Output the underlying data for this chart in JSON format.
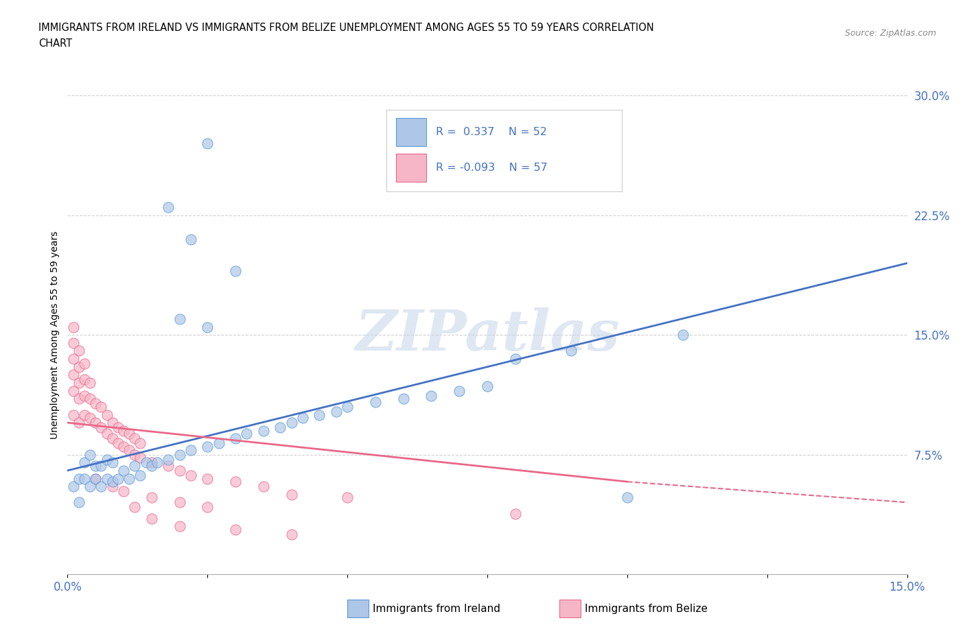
{
  "title_line1": "IMMIGRANTS FROM IRELAND VS IMMIGRANTS FROM BELIZE UNEMPLOYMENT AMONG AGES 55 TO 59 YEARS CORRELATION",
  "title_line2": "CHART",
  "source": "Source: ZipAtlas.com",
  "ylabel": "Unemployment Among Ages 55 to 59 years",
  "xlim": [
    0,
    0.15
  ],
  "ylim": [
    0,
    0.3
  ],
  "xticks": [
    0.0,
    0.025,
    0.05,
    0.075,
    0.1,
    0.125,
    0.15
  ],
  "xticklabels": [
    "0.0%",
    "",
    "",
    "",
    "",
    "",
    "15.0%"
  ],
  "yticks": [
    0.0,
    0.075,
    0.15,
    0.225,
    0.3
  ],
  "yticklabels": [
    "",
    "7.5%",
    "15.0%",
    "22.5%",
    "30.0%"
  ],
  "ireland_fill": "#aec6e8",
  "ireland_edge": "#5b9bd5",
  "belize_fill": "#f7b6c8",
  "belize_edge": "#e8688a",
  "ireland_line_color": "#4472c4",
  "belize_line_color": "#e8688a",
  "ireland_R": 0.337,
  "ireland_N": 52,
  "belize_R": -0.093,
  "belize_N": 57,
  "ireland_scatter": [
    [
      0.001,
      0.055
    ],
    [
      0.002,
      0.06
    ],
    [
      0.002,
      0.045
    ],
    [
      0.003,
      0.06
    ],
    [
      0.003,
      0.07
    ],
    [
      0.004,
      0.055
    ],
    [
      0.004,
      0.075
    ],
    [
      0.005,
      0.06
    ],
    [
      0.005,
      0.068
    ],
    [
      0.006,
      0.055
    ],
    [
      0.006,
      0.068
    ],
    [
      0.007,
      0.06
    ],
    [
      0.007,
      0.072
    ],
    [
      0.008,
      0.058
    ],
    [
      0.008,
      0.07
    ],
    [
      0.009,
      0.06
    ],
    [
      0.01,
      0.065
    ],
    [
      0.011,
      0.06
    ],
    [
      0.012,
      0.068
    ],
    [
      0.013,
      0.062
    ],
    [
      0.014,
      0.07
    ],
    [
      0.015,
      0.068
    ],
    [
      0.016,
      0.07
    ],
    [
      0.018,
      0.072
    ],
    [
      0.02,
      0.075
    ],
    [
      0.022,
      0.078
    ],
    [
      0.025,
      0.08
    ],
    [
      0.027,
      0.082
    ],
    [
      0.03,
      0.085
    ],
    [
      0.032,
      0.088
    ],
    [
      0.035,
      0.09
    ],
    [
      0.038,
      0.092
    ],
    [
      0.04,
      0.095
    ],
    [
      0.042,
      0.098
    ],
    [
      0.045,
      0.1
    ],
    [
      0.048,
      0.102
    ],
    [
      0.05,
      0.105
    ],
    [
      0.055,
      0.108
    ],
    [
      0.06,
      0.11
    ],
    [
      0.065,
      0.112
    ],
    [
      0.07,
      0.115
    ],
    [
      0.075,
      0.118
    ],
    [
      0.02,
      0.16
    ],
    [
      0.025,
      0.155
    ],
    [
      0.03,
      0.19
    ],
    [
      0.018,
      0.23
    ],
    [
      0.022,
      0.21
    ],
    [
      0.025,
      0.27
    ],
    [
      0.08,
      0.135
    ],
    [
      0.09,
      0.14
    ],
    [
      0.1,
      0.048
    ],
    [
      0.11,
      0.15
    ]
  ],
  "belize_scatter": [
    [
      0.001,
      0.1
    ],
    [
      0.001,
      0.115
    ],
    [
      0.001,
      0.125
    ],
    [
      0.001,
      0.135
    ],
    [
      0.001,
      0.145
    ],
    [
      0.001,
      0.155
    ],
    [
      0.002,
      0.095
    ],
    [
      0.002,
      0.11
    ],
    [
      0.002,
      0.12
    ],
    [
      0.002,
      0.13
    ],
    [
      0.002,
      0.14
    ],
    [
      0.003,
      0.1
    ],
    [
      0.003,
      0.112
    ],
    [
      0.003,
      0.122
    ],
    [
      0.003,
      0.132
    ],
    [
      0.004,
      0.098
    ],
    [
      0.004,
      0.11
    ],
    [
      0.004,
      0.12
    ],
    [
      0.005,
      0.095
    ],
    [
      0.005,
      0.107
    ],
    [
      0.006,
      0.092
    ],
    [
      0.006,
      0.105
    ],
    [
      0.007,
      0.088
    ],
    [
      0.007,
      0.1
    ],
    [
      0.008,
      0.085
    ],
    [
      0.008,
      0.095
    ],
    [
      0.009,
      0.082
    ],
    [
      0.009,
      0.092
    ],
    [
      0.01,
      0.08
    ],
    [
      0.01,
      0.09
    ],
    [
      0.011,
      0.078
    ],
    [
      0.011,
      0.088
    ],
    [
      0.012,
      0.075
    ],
    [
      0.012,
      0.085
    ],
    [
      0.013,
      0.073
    ],
    [
      0.013,
      0.082
    ],
    [
      0.015,
      0.07
    ],
    [
      0.018,
      0.068
    ],
    [
      0.02,
      0.065
    ],
    [
      0.022,
      0.062
    ],
    [
      0.025,
      0.06
    ],
    [
      0.03,
      0.058
    ],
    [
      0.035,
      0.055
    ],
    [
      0.005,
      0.06
    ],
    [
      0.008,
      0.055
    ],
    [
      0.01,
      0.052
    ],
    [
      0.015,
      0.048
    ],
    [
      0.02,
      0.045
    ],
    [
      0.025,
      0.042
    ],
    [
      0.04,
      0.05
    ],
    [
      0.05,
      0.048
    ],
    [
      0.08,
      0.038
    ],
    [
      0.012,
      0.042
    ],
    [
      0.015,
      0.035
    ],
    [
      0.02,
      0.03
    ],
    [
      0.03,
      0.028
    ],
    [
      0.04,
      0.025
    ]
  ],
  "watermark": "ZIPatlas",
  "watermark_color": "#c8d8ea",
  "grid_color": "#d0d0d0",
  "tick_color": "#4472c4",
  "legend_R_color": "#4472c4"
}
